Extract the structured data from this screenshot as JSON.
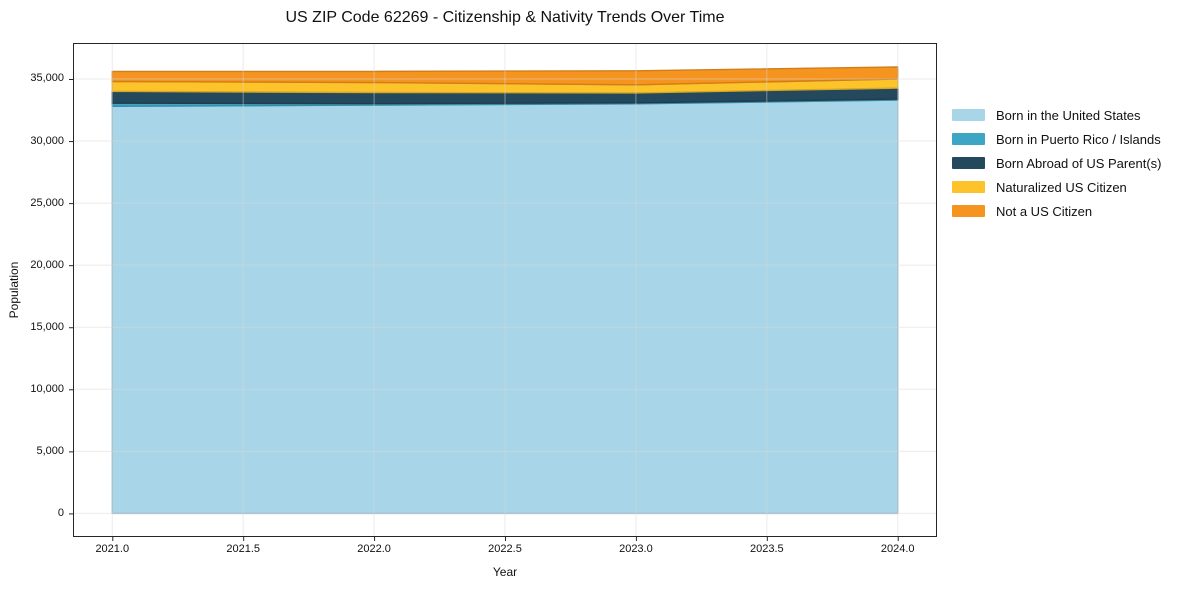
{
  "chart_data": {
    "type": "area",
    "stacked": true,
    "title": "US ZIP Code 62269 - Citizenship & Nativity Trends Over Time",
    "xlabel": "Year",
    "ylabel": "Population",
    "x": [
      2021,
      2022,
      2023,
      2024
    ],
    "series": [
      {
        "name": "Born in the United States",
        "color": "#A9D5E8",
        "values": [
          32800,
          32900,
          33000,
          33300
        ]
      },
      {
        "name": "Born in Puerto Rico / Islands",
        "color": "#3DA6C4",
        "values": [
          250,
          120,
          80,
          80
        ]
      },
      {
        "name": "Born Abroad of US Parent(s)",
        "color": "#24485C",
        "values": [
          950,
          890,
          800,
          890
        ]
      },
      {
        "name": "Naturalized US Citizen",
        "color": "#FCC32B",
        "values": [
          800,
          810,
          650,
          730
        ]
      },
      {
        "name": "Not a US Citizen",
        "color": "#F5941F",
        "values": [
          810,
          890,
          1130,
          970
        ]
      }
    ],
    "xlim": [
      2020.85,
      2024.15
    ],
    "ylim": [
      -1900,
      37900
    ],
    "xticks": {
      "values": [
        2021,
        2021.5,
        2022,
        2022.5,
        2023,
        2023.5,
        2024
      ],
      "labels": [
        "2021.0",
        "2021.5",
        "2022.0",
        "2022.5",
        "2023.0",
        "2023.5",
        "2024.0"
      ]
    },
    "yticks": {
      "values": [
        0,
        5000,
        10000,
        15000,
        20000,
        25000,
        30000,
        35000
      ],
      "labels": [
        "0",
        "5,000",
        "10,000",
        "15,000",
        "20,000",
        "25,000",
        "30,000",
        "35,000"
      ]
    },
    "grid": true,
    "legend_position": "right"
  },
  "colors": {
    "axis": "#262626",
    "grid": "#e9e9e9",
    "text": "#111111",
    "background": "#ffffff"
  }
}
